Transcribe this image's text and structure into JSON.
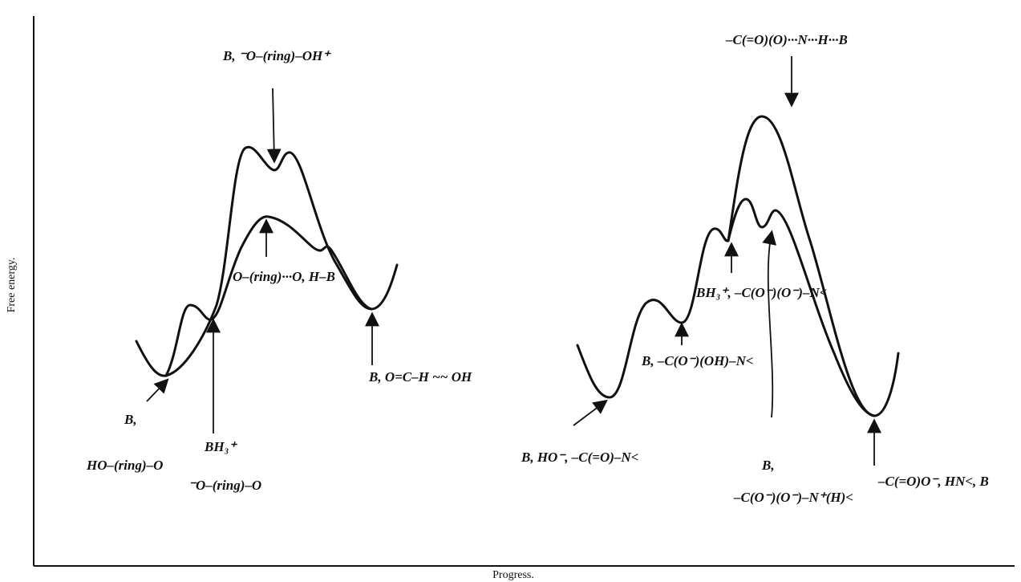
{
  "axes": {
    "y_label": "Free energy.",
    "x_label": "Progress."
  },
  "left_profile": {
    "annotations": [
      {
        "label": "B, ⁻O–(ring)–OH⁺"
      },
      {
        "label": "B,"
      },
      {
        "label": "HO–(ring)–O"
      },
      {
        "label": "BH₃⁺"
      },
      {
        "label": "⁻O–(ring)–O"
      },
      {
        "label": "O–(ring)···O, H–B"
      },
      {
        "label": "B, O=C–H ~~ OH"
      }
    ]
  },
  "right_profile": {
    "annotations": [
      {
        "label": "–C(=O)(O)···N···H···B"
      },
      {
        "label": "B, HO⁻, –C(=O)–N<"
      },
      {
        "label": "B, –C(O⁻)(OH)–N<"
      },
      {
        "label": "BH₃⁺, –C(O⁻)(O⁻)–N<"
      },
      {
        "label": "B,"
      },
      {
        "label": "–C(O⁻)(O⁻)–N⁺(H)<"
      },
      {
        "label": "–C(=O)O⁻, HN<, B"
      }
    ]
  }
}
